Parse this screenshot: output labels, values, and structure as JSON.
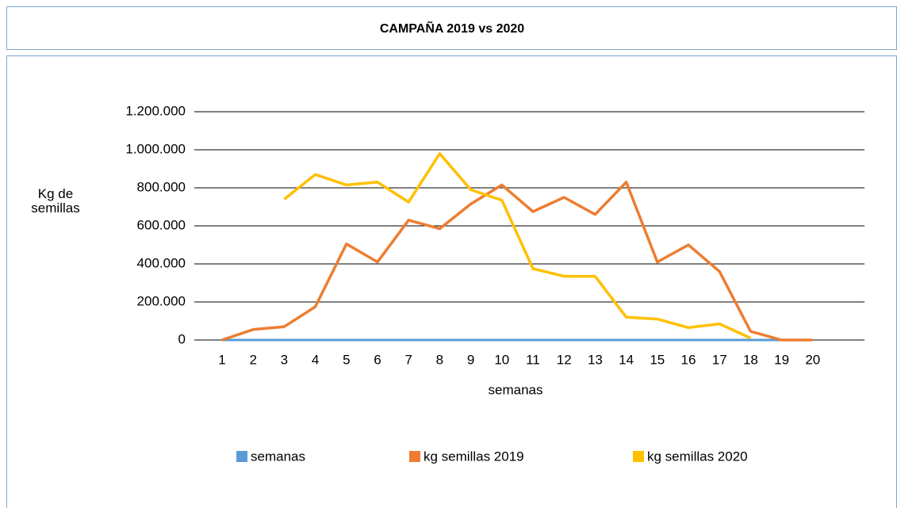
{
  "chart_data": {
    "type": "line",
    "title": "CAMPAÑA 2019 vs 2020",
    "x_label": "semanas",
    "y_label": "Kg de semillas",
    "categories": [
      "1",
      "2",
      "3",
      "4",
      "5",
      "6",
      "7",
      "8",
      "9",
      "10",
      "11",
      "12",
      "13",
      "14",
      "15",
      "16",
      "17",
      "18",
      "19",
      "20"
    ],
    "series": [
      {
        "name": "semanas",
        "color": "#5b9bd5",
        "values": [
          1,
          2,
          3,
          4,
          5,
          6,
          7,
          8,
          9,
          10,
          11,
          12,
          13,
          14,
          15,
          16,
          17,
          18,
          19,
          20
        ]
      },
      {
        "name": "kg semillas 2019",
        "color": "#ed7d31",
        "values": [
          0,
          55000,
          70000,
          175000,
          505000,
          410000,
          630000,
          585000,
          715000,
          815000,
          675000,
          750000,
          660000,
          830000,
          410000,
          500000,
          360000,
          45000,
          0,
          0
        ]
      },
      {
        "name": "kg semillas 2020",
        "color": "#ffc000",
        "values": [
          null,
          null,
          740000,
          870000,
          815000,
          830000,
          725000,
          980000,
          790000,
          735000,
          375000,
          335000,
          335000,
          120000,
          110000,
          65000,
          85000,
          10000,
          null,
          null
        ]
      }
    ],
    "ylim": [
      0,
      1200000
    ],
    "yticks": [
      0,
      {
        "value": 200000,
        "label": "200.000"
      },
      {
        "value": 400000,
        "label": "400.000"
      },
      {
        "value": 600000,
        "label": "600.000"
      },
      {
        "value": 800000,
        "label": "800.000"
      },
      {
        "value": 1000000,
        "label": "1.000.000"
      },
      {
        "value": 1200000,
        "label": "1.200.000"
      }
    ],
    "grid": true,
    "legend": "bottom"
  }
}
